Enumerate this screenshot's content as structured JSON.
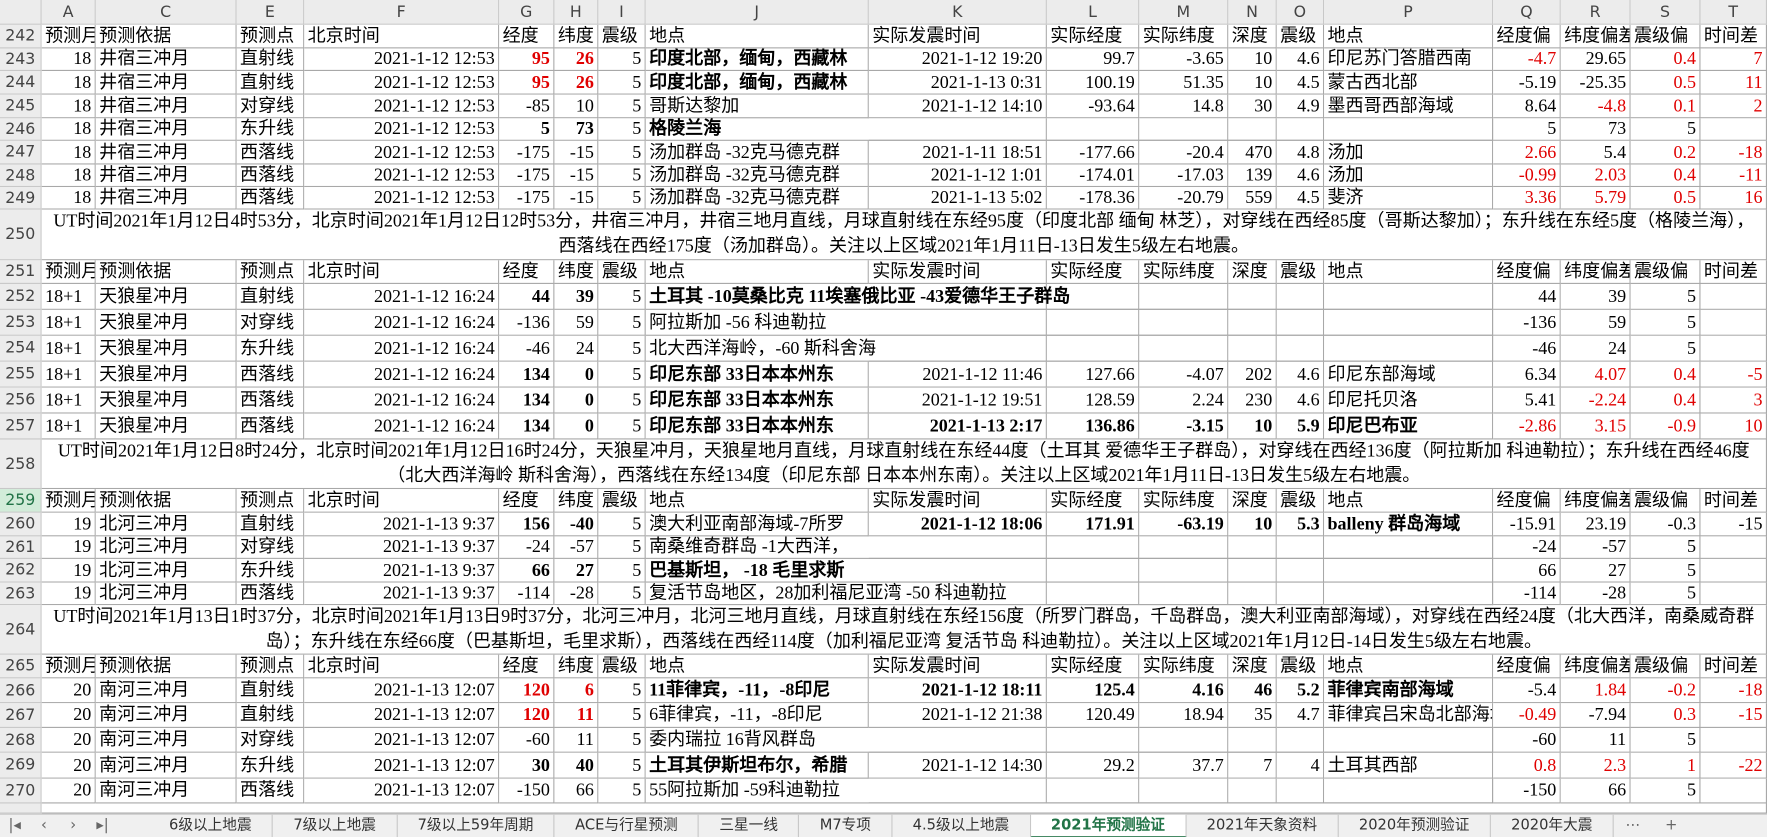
{
  "sheet": {
    "column_letters": [
      "A",
      "C",
      "E",
      "F",
      "G",
      "H",
      "I",
      "J",
      "K",
      "L",
      "M",
      "N",
      "O",
      "P",
      "Q",
      "R",
      "S",
      "T"
    ],
    "rows": [
      {
        "row": 242,
        "cells": [
          "预测月",
          "预测依据",
          "预测点",
          "北京时间",
          "经度",
          "纬度",
          "震级",
          "地点",
          "实际发震时间",
          "实际经度",
          "实际纬度",
          "深度",
          "震级",
          "地点",
          "经度偏",
          "纬度偏差",
          "震级偏",
          "时间差"
        ]
      },
      {
        "row": 243,
        "cells": [
          18,
          "井宿三冲月",
          "直射线",
          "2021-1-12 12:53",
          95,
          26,
          5,
          "印度北部，缅甸，西藏林",
          "2021-1-12 19:20",
          99.7,
          -3.65,
          10,
          4.6,
          "印尼苏门答腊西南",
          -4.7,
          29.65,
          0.4,
          7
        ]
      },
      {
        "row": 244,
        "cells": [
          18,
          "井宿三冲月",
          "直射线",
          "2021-1-12 12:53",
          95,
          26,
          5,
          "印度北部，缅甸，西藏林",
          "2021-1-13 0:31",
          100.19,
          51.35,
          10,
          4.5,
          "蒙古西北部",
          -5.19,
          -25.35,
          0.5,
          11
        ]
      },
      {
        "row": 245,
        "cells": [
          18,
          "井宿三冲月",
          "对穿线",
          "2021-1-12 12:53",
          -85,
          10,
          5,
          "哥斯达黎加",
          "2021-1-12 14:10",
          -93.64,
          14.8,
          30,
          4.9,
          "墨西哥西部海域",
          8.64,
          -4.8,
          0.1,
          2
        ]
      },
      {
        "row": 246,
        "cells": [
          18,
          "井宿三冲月",
          "东升线",
          "2021-1-12 12:53",
          5,
          73,
          5,
          "格陵兰海",
          null,
          null,
          null,
          null,
          null,
          null,
          5,
          73,
          5,
          null
        ]
      },
      {
        "row": 247,
        "cells": [
          18,
          "井宿三冲月",
          "西落线",
          "2021-1-12 12:53",
          -175,
          -15,
          5,
          "汤加群岛 -32克马德克群",
          "2021-1-11 18:51",
          -177.66,
          -20.4,
          470,
          4.8,
          "汤加",
          2.66,
          5.4,
          0.2,
          -18
        ]
      },
      {
        "row": 248,
        "cells": [
          18,
          "井宿三冲月",
          "西落线",
          "2021-1-12 12:53",
          -175,
          -15,
          5,
          "汤加群岛 -32克马德克群",
          "2021-1-12 1:01",
          -174.01,
          -17.03,
          139,
          4.6,
          "汤加",
          -0.99,
          2.03,
          0.4,
          -11
        ]
      },
      {
        "row": 249,
        "cells": [
          18,
          "井宿三冲月",
          "西落线",
          "2021-1-12 12:53",
          -175,
          -15,
          5,
          "汤加群岛 -32克马德克群",
          "2021-1-13 5:02",
          -178.36,
          -20.79,
          559,
          4.5,
          "斐济",
          3.36,
          5.79,
          0.5,
          16
        ]
      },
      {
        "row": 250,
        "note": "UT时间2021年1月12日4时53分，北京时间2021年1月12日12时53分，井宿三冲月，井宿三地月直线，月球直射线在东经95度（印度北部 缅甸 林芝），对穿线在西经85度（哥斯达黎加）；东升线在东经5度（格陵兰海），西落线在西经175度（汤加群岛）。关注以上区域2021年1月11日-13日发生5级左右地震。"
      },
      {
        "row": 251,
        "cells": [
          "预测月",
          "预测依据",
          "预测点",
          "北京时间",
          "经度",
          "纬度",
          "震级",
          "地点",
          "实际发震时间",
          "实际经度",
          "实际纬度",
          "深度",
          "震级",
          "地点",
          "经度偏",
          "纬度偏差",
          "震级偏",
          "时间差"
        ]
      },
      {
        "row": 252,
        "cells": [
          "18+1",
          "天狼星冲月",
          "直射线",
          "2021-1-12 16:24",
          44,
          39,
          5,
          "土耳其 -10莫桑比克 11埃塞俄比亚 -43爱德华王子群岛",
          null,
          null,
          null,
          null,
          null,
          null,
          44,
          39,
          5,
          null
        ]
      },
      {
        "row": 253,
        "cells": [
          "18+1",
          "天狼星冲月",
          "对穿线",
          "2021-1-12 16:24",
          -136,
          59,
          5,
          "阿拉斯加 -56 科迪勒拉",
          null,
          null,
          null,
          null,
          null,
          null,
          -136,
          59,
          5,
          null
        ]
      },
      {
        "row": 254,
        "cells": [
          "18+1",
          "天狼星冲月",
          "东升线",
          "2021-1-12 16:24",
          -46,
          24,
          5,
          "北大西洋海岭，-60 斯科舍海",
          null,
          null,
          null,
          null,
          null,
          null,
          -46,
          24,
          5,
          null
        ]
      },
      {
        "row": 255,
        "cells": [
          "18+1",
          "天狼星冲月",
          "西落线",
          "2021-1-12 16:24",
          134,
          0,
          5,
          "印尼东部 33日本本州东",
          "2021-1-12 11:46",
          127.66,
          -4.07,
          202,
          4.6,
          "印尼东部海域",
          6.34,
          4.07,
          0.4,
          -5
        ]
      },
      {
        "row": 256,
        "cells": [
          "18+1",
          "天狼星冲月",
          "西落线",
          "2021-1-12 16:24",
          134,
          0,
          5,
          "印尼东部 33日本本州东",
          "2021-1-12 19:51",
          128.59,
          2.24,
          230,
          4.6,
          "印尼托贝洛",
          5.41,
          -2.24,
          0.4,
          3
        ]
      },
      {
        "row": 257,
        "cells": [
          "18+1",
          "天狼星冲月",
          "西落线",
          "2021-1-12 16:24",
          134,
          0,
          5,
          "印尼东部 33日本本州东",
          "2021-1-13 2:17",
          136.86,
          -3.15,
          10,
          5.9,
          "印尼巴布亚",
          -2.86,
          3.15,
          -0.9,
          10
        ]
      },
      {
        "row": 258,
        "note": "UT时间2021年1月12日8时24分，北京时间2021年1月12日16时24分，天狼星冲月，天狼星地月直线，月球直射线在东经44度（土耳其 爱德华王子群岛），对穿线在西经136度（阿拉斯加 科迪勒拉）；东升线在西经46度（北大西洋海岭 斯科舍海），西落线在东经134度（印尼东部 日本本州东南）。关注以上区域2021年1月11日-13日发生5级左右地震。"
      },
      {
        "row": 259,
        "cells": [
          "预测月",
          "预测依据",
          "预测点",
          "北京时间",
          "经度",
          "纬度",
          "震级",
          "地点",
          "实际发震时间",
          "实际经度",
          "实际纬度",
          "深度",
          "震级",
          "地点",
          "经度偏",
          "纬度偏差",
          "震级偏",
          "时间差"
        ]
      },
      {
        "row": 260,
        "cells": [
          19,
          "北河三冲月",
          "直射线",
          "2021-1-13 9:37",
          156,
          -40,
          5,
          "澳大利亚南部海域-7所罗",
          "2021-1-12 18:06",
          171.91,
          -63.19,
          10,
          5.3,
          "balleny 群岛海域",
          -15.91,
          23.19,
          -0.3,
          -15
        ]
      },
      {
        "row": 261,
        "cells": [
          19,
          "北河三冲月",
          "对穿线",
          "2021-1-13 9:37",
          -24,
          -57,
          5,
          "南桑维奇群岛 -1大西洋，",
          null,
          null,
          null,
          null,
          null,
          null,
          -24,
          -57,
          5,
          null
        ]
      },
      {
        "row": 262,
        "cells": [
          19,
          "北河三冲月",
          "东升线",
          "2021-1-13 9:37",
          66,
          27,
          5,
          "巴基斯坦， -18 毛里求斯",
          null,
          null,
          null,
          null,
          null,
          null,
          66,
          27,
          5,
          null
        ]
      },
      {
        "row": 263,
        "cells": [
          19,
          "北河三冲月",
          "西落线",
          "2021-1-13 9:37",
          -114,
          -28,
          5,
          "复活节岛地区，28加利福尼亚湾 -50 科迪勒拉",
          null,
          null,
          null,
          null,
          null,
          null,
          -114,
          -28,
          5,
          null
        ]
      },
      {
        "row": 264,
        "note": "UT时间2021年1月13日1时37分，北京时间2021年1月13日9时37分，北河三冲月，北河三地月直线，月球直射线在东经156度（所罗门群岛，千岛群岛，澳大利亚南部海域），对穿线在西经24度（北大西洋，南桑威奇群岛）；东升线在东经66度（巴基斯坦，毛里求斯），西落线在西经114度（加利福尼亚湾 复活节岛 科迪勒拉）。关注以上区域2021年1月12日-14日发生5级左右地震。"
      },
      {
        "row": 265,
        "cells": [
          "预测月",
          "预测依据",
          "预测点",
          "北京时间",
          "经度",
          "纬度",
          "震级",
          "地点",
          "实际发震时间",
          "实际经度",
          "实际纬度",
          "深度",
          "震级",
          "地点",
          "经度偏",
          "纬度偏差",
          "震级偏",
          "时间差"
        ]
      },
      {
        "row": 266,
        "cells": [
          20,
          "南河三冲月",
          "直射线",
          "2021-1-13 12:07",
          120,
          6,
          5,
          "11菲律宾，-11，-8印尼",
          "2021-1-12 18:11",
          125.4,
          4.16,
          46,
          5.2,
          "菲律宾南部海域",
          -5.4,
          1.84,
          -0.2,
          -18
        ]
      },
      {
        "row": 267,
        "cells": [
          20,
          "南河三冲月",
          "直射线",
          "2021-1-13 12:07",
          120,
          11,
          5,
          "6菲律宾，-11，-8印尼",
          "2021-1-12 21:38",
          120.49,
          18.94,
          35,
          4.7,
          "菲律宾吕宋岛北部海域",
          -0.49,
          -7.94,
          0.3,
          -15
        ]
      },
      {
        "row": 268,
        "cells": [
          20,
          "南河三冲月",
          "对穿线",
          "2021-1-13 12:07",
          -60,
          11,
          5,
          "委内瑞拉 16背风群岛",
          null,
          null,
          null,
          null,
          null,
          null,
          -60,
          11,
          5,
          null
        ]
      },
      {
        "row": 269,
        "cells": [
          20,
          "南河三冲月",
          "东升线",
          "2021-1-13 12:07",
          30,
          40,
          5,
          "土耳其伊斯坦布尔，希腊",
          "2021-1-12 14:30",
          29.2,
          37.7,
          7,
          4,
          "土耳其西部",
          0.8,
          2.3,
          1,
          -22
        ]
      },
      {
        "row": 270,
        "cells": [
          20,
          "南河三冲月",
          "西落线",
          "2021-1-13 12:07",
          -150,
          66,
          5,
          "55阿拉斯加 -59科迪勒拉",
          null,
          null,
          null,
          null,
          null,
          null,
          -150,
          66,
          5,
          null
        ]
      }
    ],
    "tabs": [
      "6级以上地震",
      "7级以上地震",
      "7级以上59年周期",
      "ACE与行星预测",
      "三星一线",
      "M7专项",
      "4.5级以上地震",
      "2021年预测验证",
      "2021年天象资料",
      "2020年预测验证",
      "2020年大震"
    ],
    "active_tab": 7
  }
}
